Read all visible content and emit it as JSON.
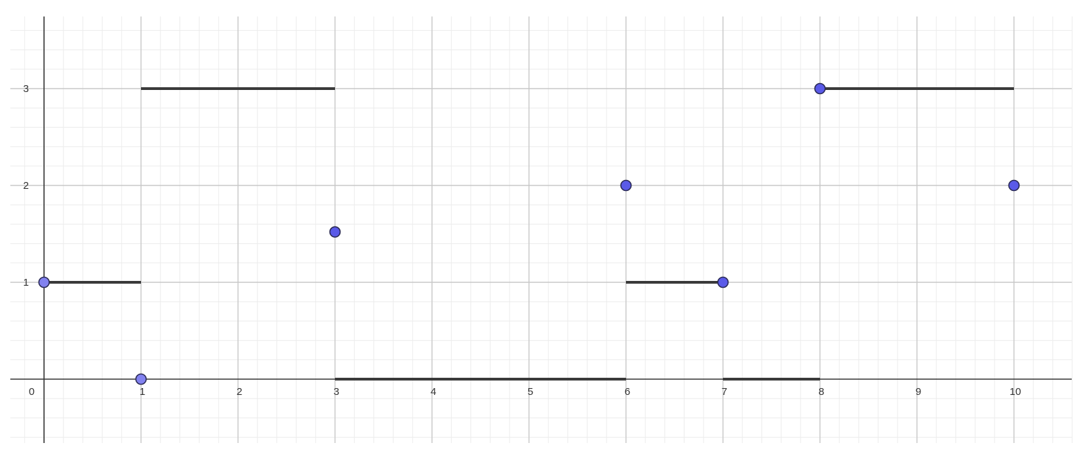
{
  "chart_data": {
    "type": "scatter",
    "title": "",
    "xlabel": "",
    "ylabel": "",
    "xlim": [
      -0.35,
      10.6
    ],
    "ylim": [
      -0.65,
      3.75
    ],
    "grid": true,
    "x_ticks": [
      {
        "value": 0,
        "label": "0"
      },
      {
        "value": 1,
        "label": "1"
      },
      {
        "value": 2,
        "label": "2"
      },
      {
        "value": 3,
        "label": "3"
      },
      {
        "value": 4,
        "label": "4"
      },
      {
        "value": 5,
        "label": "5"
      },
      {
        "value": 6,
        "label": "6"
      },
      {
        "value": 7,
        "label": "7"
      },
      {
        "value": 8,
        "label": "8"
      },
      {
        "value": 9,
        "label": "9"
      },
      {
        "value": 10,
        "label": "10"
      }
    ],
    "y_ticks": [
      {
        "value": 1,
        "label": "1"
      },
      {
        "value": 2,
        "label": "2"
      },
      {
        "value": 3,
        "label": "3"
      }
    ],
    "segments": [
      {
        "x1": 0,
        "x2": 1,
        "y": 1
      },
      {
        "x1": 1,
        "x2": 3,
        "y": 3
      },
      {
        "x1": 3,
        "x2": 6,
        "y": 0
      },
      {
        "x1": 6,
        "x2": 7,
        "y": 1
      },
      {
        "x1": 7,
        "x2": 8,
        "y": 0
      },
      {
        "x1": 8,
        "x2": 10,
        "y": 3
      }
    ],
    "points": [
      {
        "x": 0,
        "y": 1,
        "shade": "light"
      },
      {
        "x": 1,
        "y": 0,
        "shade": "light"
      },
      {
        "x": 3,
        "y": 1.52,
        "shade": "dark"
      },
      {
        "x": 6,
        "y": 2,
        "shade": "dark"
      },
      {
        "x": 7,
        "y": 1,
        "shade": "dark"
      },
      {
        "x": 8,
        "y": 3,
        "shade": "dark"
      },
      {
        "x": 10,
        "y": 2,
        "shade": "dark"
      }
    ],
    "colors": {
      "point_dark": "#5a5ae8",
      "point_light": "#8282f0",
      "point_stroke": "#2a2a55",
      "segment": "#3a3a3a",
      "axis": "#333333",
      "major_grid": "#c8c8c8",
      "minor_grid": "#ececec"
    }
  }
}
